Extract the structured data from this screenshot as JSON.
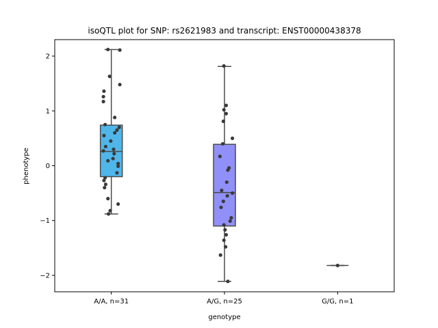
{
  "chart_data": {
    "type": "box",
    "title": "isoQTL plot for SNP: rs2621983 and transcript: ENST00000438378",
    "xlabel": "genotype",
    "ylabel": "phenotype",
    "ylim": [
      -2.3,
      2.3
    ],
    "yticks": [
      -2,
      -1,
      0,
      1,
      2
    ],
    "ytick_labels": [
      "−2",
      "−1",
      "0",
      "1",
      "2"
    ],
    "grid": false,
    "categories": [
      "A/A, n=31",
      "A/G, n=25",
      "G/G, n=1"
    ],
    "colors": [
      "#4fb6ea",
      "#9090f8",
      "#b28ef0"
    ],
    "point_color": "#3a3a3a",
    "box_edge_color": "#4a4a4a",
    "boxes": [
      {
        "q1": -0.2,
        "median": 0.26,
        "q3": 0.74,
        "whisker_low": -0.88,
        "whisker_high": 2.12
      },
      {
        "q1": -1.1,
        "median": -0.49,
        "q3": 0.39,
        "whisker_low": -2.11,
        "whisker_high": 1.81
      },
      {
        "q1": -1.82,
        "median": -1.82,
        "q3": -1.82,
        "whisker_low": -1.82,
        "whisker_high": -1.82
      }
    ],
    "points": [
      [
        {
          "j": 0.15,
          "y": 2.11
        },
        {
          "j": -0.06,
          "y": 2.12
        },
        {
          "j": -0.03,
          "y": 1.63
        },
        {
          "j": 0.15,
          "y": 1.48
        },
        {
          "j": -0.13,
          "y": 1.36
        },
        {
          "j": -0.14,
          "y": 1.26
        },
        {
          "j": -0.14,
          "y": 1.17
        },
        {
          "j": 0.06,
          "y": 0.88
        },
        {
          "j": -0.11,
          "y": 0.75
        },
        {
          "j": 0.14,
          "y": 0.7
        },
        {
          "j": 0.1,
          "y": 0.65
        },
        {
          "j": 0.06,
          "y": 0.6
        },
        {
          "j": -0.13,
          "y": 0.55
        },
        {
          "j": -0.01,
          "y": 0.45
        },
        {
          "j": -0.1,
          "y": 0.35
        },
        {
          "j": 0.04,
          "y": 0.3
        },
        {
          "j": -0.14,
          "y": 0.27
        },
        {
          "j": 0.05,
          "y": 0.22
        },
        {
          "j": 0.03,
          "y": 0.13
        },
        {
          "j": -0.06,
          "y": 0.09
        },
        {
          "j": 0.12,
          "y": 0.04
        },
        {
          "j": 0.12,
          "y": -0.01
        },
        {
          "j": 0.1,
          "y": -0.13
        },
        {
          "j": -0.11,
          "y": -0.22
        },
        {
          "j": -0.13,
          "y": -0.27
        },
        {
          "j": -0.1,
          "y": -0.34
        },
        {
          "j": -0.12,
          "y": -0.4
        },
        {
          "j": -0.06,
          "y": -0.6
        },
        {
          "j": 0.12,
          "y": -0.7
        },
        {
          "j": -0.02,
          "y": -0.82
        },
        {
          "j": -0.05,
          "y": -0.88
        }
      ],
      [
        {
          "j": -0.01,
          "y": 1.82
        },
        {
          "j": 0.03,
          "y": 1.1
        },
        {
          "j": -0.01,
          "y": 1.02
        },
        {
          "j": 0.03,
          "y": 0.95
        },
        {
          "j": -0.02,
          "y": 0.81
        },
        {
          "j": 0.14,
          "y": 0.5
        },
        {
          "j": -0.03,
          "y": 0.4
        },
        {
          "j": -0.08,
          "y": 0.17
        },
        {
          "j": 0.08,
          "y": -0.04
        },
        {
          "j": 0.06,
          "y": -0.08
        },
        {
          "j": 0.04,
          "y": -0.3
        },
        {
          "j": -0.05,
          "y": -0.45
        },
        {
          "j": 0.14,
          "y": -0.5
        },
        {
          "j": 0.05,
          "y": -0.55
        },
        {
          "j": -0.02,
          "y": -0.65
        },
        {
          "j": -0.06,
          "y": -0.76
        },
        {
          "j": 0.12,
          "y": -0.95
        },
        {
          "j": 0.1,
          "y": -1.01
        },
        {
          "j": -0.01,
          "y": -1.08
        },
        {
          "j": 0.01,
          "y": -1.17
        },
        {
          "j": 0.03,
          "y": -1.26
        },
        {
          "j": -0.01,
          "y": -1.36
        },
        {
          "j": 0.02,
          "y": -1.48
        },
        {
          "j": -0.07,
          "y": -1.63
        },
        {
          "j": 0.06,
          "y": -2.11
        }
      ],
      [
        {
          "j": 0.0,
          "y": -1.82
        }
      ]
    ]
  }
}
